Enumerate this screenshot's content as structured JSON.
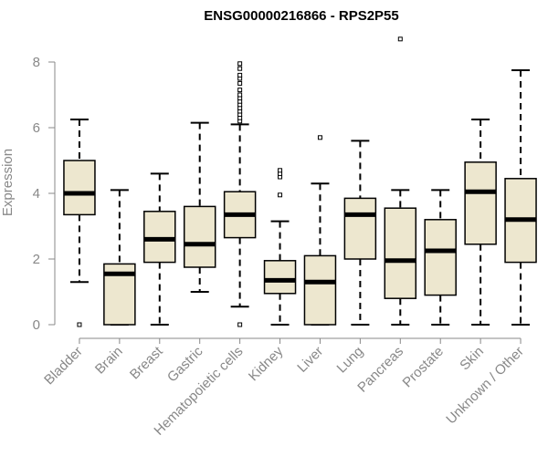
{
  "chart_data": {
    "type": "boxplot",
    "title": "ENSG00000216866 - RPS2P55",
    "xlabel": "",
    "ylabel": "Expression",
    "ylim": [
      0,
      8.7
    ],
    "yticks": [
      0,
      2,
      4,
      6,
      8
    ],
    "grid": false,
    "legend": "none",
    "box_fill": "#ede7cf",
    "box_stroke": "#000000",
    "median_stroke": "#000000",
    "axis_color": "#888888",
    "categories": [
      "Bladder",
      "Brain",
      "Breast",
      "Gastric",
      "Hematopoietic cells",
      "Kidney",
      "Liver",
      "Lung",
      "Pancreas",
      "Prostate",
      "Skin",
      "Unknown / Other"
    ],
    "boxes": [
      {
        "category": "Bladder",
        "min": 1.3,
        "q1": 3.35,
        "median": 4.0,
        "q3": 5.0,
        "max": 6.25,
        "outliers": [
          0.0
        ]
      },
      {
        "category": "Brain",
        "min": 0.0,
        "q1": 0.0,
        "median": 1.55,
        "q3": 1.85,
        "max": 4.1,
        "outliers": []
      },
      {
        "category": "Breast",
        "min": 0.0,
        "q1": 1.9,
        "median": 2.6,
        "q3": 3.45,
        "max": 4.6,
        "outliers": []
      },
      {
        "category": "Gastric",
        "min": 1.0,
        "q1": 1.75,
        "median": 2.45,
        "q3": 3.6,
        "max": 6.15,
        "outliers": []
      },
      {
        "category": "Hematopoietic cells",
        "min": 0.55,
        "q1": 2.65,
        "median": 3.35,
        "q3": 4.05,
        "max": 6.1,
        "outliers": [
          0.0,
          6.2,
          6.3,
          6.4,
          6.5,
          6.6,
          6.7,
          6.8,
          6.9,
          7.0,
          7.15,
          7.35,
          7.5,
          7.6,
          7.8,
          7.95
        ]
      },
      {
        "category": "Kidney",
        "min": 0.0,
        "q1": 0.95,
        "median": 1.35,
        "q3": 1.95,
        "max": 3.15,
        "outliers": [
          3.95,
          4.5,
          4.6,
          4.7
        ]
      },
      {
        "category": "Liver",
        "min": 0.0,
        "q1": 0.0,
        "median": 1.3,
        "q3": 2.1,
        "max": 4.3,
        "outliers": [
          5.7
        ]
      },
      {
        "category": "Lung",
        "min": 0.0,
        "q1": 2.0,
        "median": 3.35,
        "q3": 3.85,
        "max": 5.6,
        "outliers": []
      },
      {
        "category": "Pancreas",
        "min": 0.0,
        "q1": 0.8,
        "median": 1.95,
        "q3": 3.55,
        "max": 4.1,
        "outliers": [
          8.7
        ]
      },
      {
        "category": "Prostate",
        "min": 0.0,
        "q1": 0.9,
        "median": 2.25,
        "q3": 3.2,
        "max": 4.1,
        "outliers": []
      },
      {
        "category": "Skin",
        "min": 0.0,
        "q1": 2.45,
        "median": 4.05,
        "q3": 4.95,
        "max": 6.25,
        "outliers": []
      },
      {
        "category": "Unknown / Other",
        "min": 0.0,
        "q1": 1.9,
        "median": 3.2,
        "q3": 4.45,
        "max": 7.75,
        "outliers": []
      }
    ]
  }
}
